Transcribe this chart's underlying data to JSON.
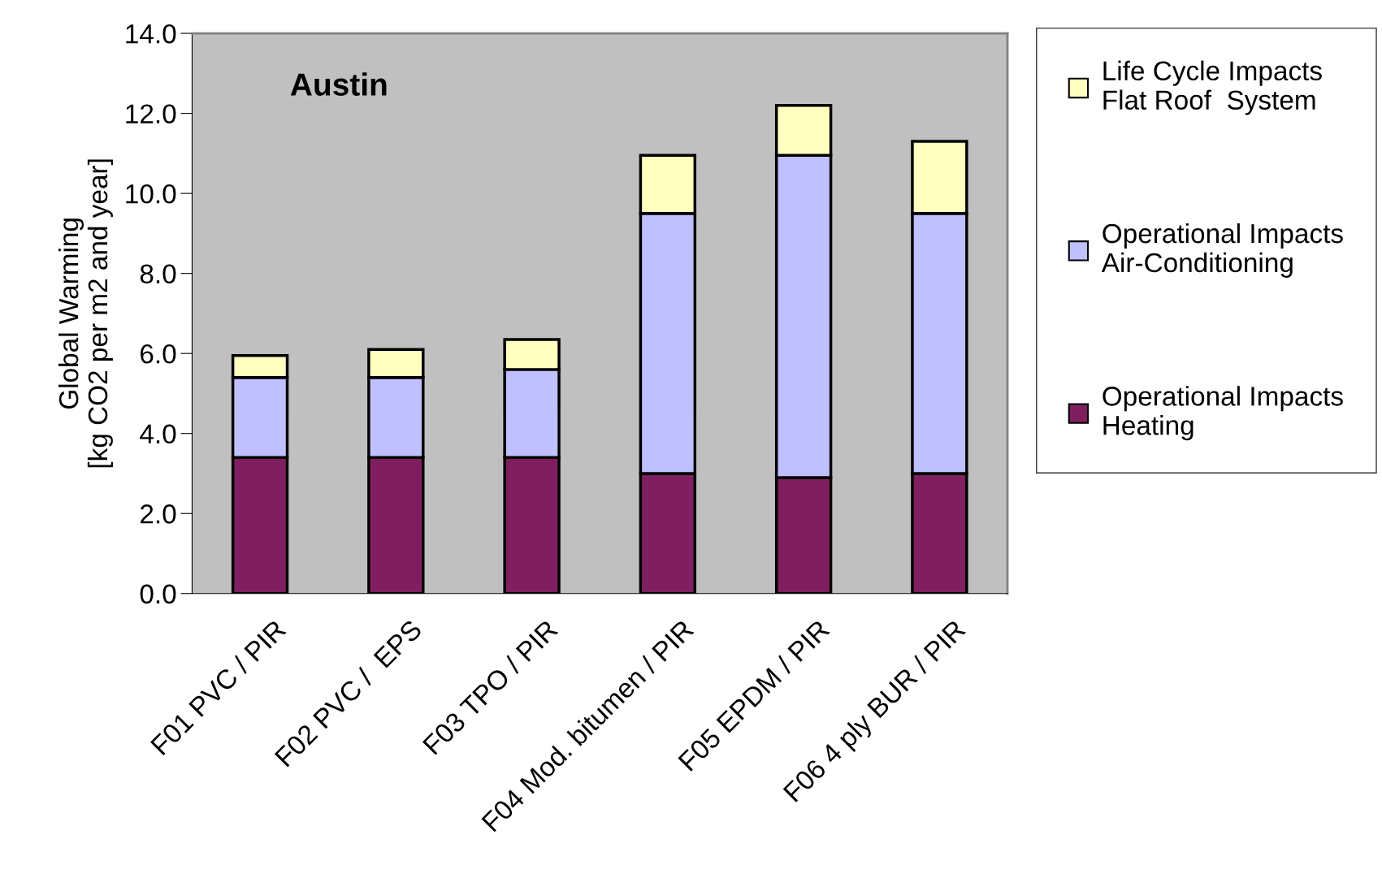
{
  "chart_data": {
    "type": "bar",
    "title": "Austin",
    "ylabel": "Global Warming\n[kg CO2 per m2 and year]",
    "categories": [
      "F01 PVC / PIR",
      "F02 PVC /  EPS",
      "F03 TPO / PIR",
      "F04 Mod. bitumen / PIR",
      "F05 EPDM / PIR",
      "F06 4 ply BUR / PIR"
    ],
    "stacked": true,
    "series": [
      {
        "name": "Operational Impacts\nHeating",
        "color": "#7f1f5f",
        "values": [
          3.4,
          3.4,
          3.4,
          3.0,
          2.9,
          3.0
        ]
      },
      {
        "name": "Operational Impacts\nAir-Conditioning",
        "color": "#c0c0ff",
        "values": [
          2.0,
          2.0,
          2.2,
          6.5,
          8.05,
          6.5
        ]
      },
      {
        "name": "Life Cycle Impacts\nFlat Roof  System",
        "color": "#ffffc0",
        "values": [
          0.55,
          0.7,
          0.75,
          1.45,
          1.25,
          1.8
        ]
      }
    ],
    "ylim": [
      0,
      14
    ],
    "yticks": [
      {
        "value": 0,
        "label": "0.0"
      },
      {
        "value": 2,
        "label": "2.0"
      },
      {
        "value": 4,
        "label": "4.0"
      },
      {
        "value": 6,
        "label": "6.0"
      },
      {
        "value": 8,
        "label": "8.0"
      },
      {
        "value": 10,
        "label": "10.0"
      },
      {
        "value": 12,
        "label": "12.0"
      },
      {
        "value": 14,
        "label": "14.0"
      }
    ],
    "grid": false,
    "legend": "right"
  }
}
